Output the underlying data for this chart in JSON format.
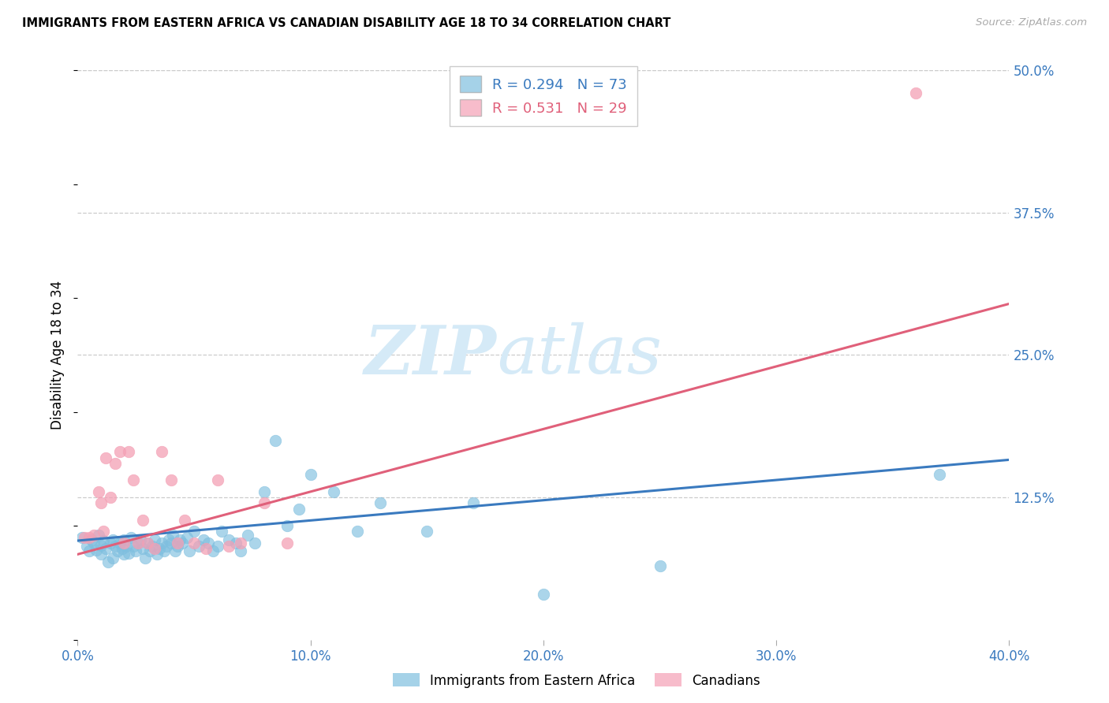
{
  "title": "IMMIGRANTS FROM EASTERN AFRICA VS CANADIAN DISABILITY AGE 18 TO 34 CORRELATION CHART",
  "source": "Source: ZipAtlas.com",
  "ylabel": "Disability Age 18 to 34",
  "xlabel_ticks": [
    "0.0%",
    "10.0%",
    "20.0%",
    "30.0%",
    "40.0%"
  ],
  "xlabel_vals": [
    0.0,
    0.1,
    0.2,
    0.3,
    0.4
  ],
  "ylabel_ticks": [
    "12.5%",
    "25.0%",
    "37.5%",
    "50.0%"
  ],
  "ylabel_vals": [
    0.125,
    0.25,
    0.375,
    0.5
  ],
  "xlim": [
    0.0,
    0.4
  ],
  "ylim": [
    0.0,
    0.5
  ],
  "blue_R": 0.294,
  "blue_N": 73,
  "pink_R": 0.531,
  "pink_N": 29,
  "blue_color": "#7fbfdf",
  "pink_color": "#f4a0b5",
  "blue_line_color": "#3a7abf",
  "pink_line_color": "#e0607a",
  "watermark_color": "#d5eaf7",
  "legend_label_blue": "Immigrants from Eastern Africa",
  "legend_label_pink": "Canadians",
  "blue_line_x0": 0.0,
  "blue_line_y0": 0.087,
  "blue_line_x1": 0.4,
  "blue_line_y1": 0.158,
  "pink_line_x0": 0.0,
  "pink_line_y0": 0.075,
  "pink_line_x1": 0.4,
  "pink_line_y1": 0.295,
  "blue_scatter_x": [
    0.002,
    0.004,
    0.005,
    0.006,
    0.007,
    0.008,
    0.009,
    0.01,
    0.01,
    0.011,
    0.012,
    0.013,
    0.014,
    0.015,
    0.015,
    0.016,
    0.017,
    0.018,
    0.019,
    0.02,
    0.02,
    0.021,
    0.022,
    0.023,
    0.024,
    0.025,
    0.026,
    0.027,
    0.028,
    0.029,
    0.03,
    0.031,
    0.032,
    0.033,
    0.034,
    0.035,
    0.036,
    0.037,
    0.038,
    0.039,
    0.04,
    0.041,
    0.042,
    0.043,
    0.044,
    0.045,
    0.047,
    0.048,
    0.05,
    0.052,
    0.054,
    0.056,
    0.058,
    0.06,
    0.062,
    0.065,
    0.068,
    0.07,
    0.073,
    0.076,
    0.08,
    0.085,
    0.09,
    0.095,
    0.1,
    0.11,
    0.12,
    0.13,
    0.15,
    0.17,
    0.2,
    0.25,
    0.37
  ],
  "blue_scatter_y": [
    0.09,
    0.082,
    0.078,
    0.088,
    0.085,
    0.079,
    0.092,
    0.075,
    0.083,
    0.087,
    0.08,
    0.068,
    0.085,
    0.088,
    0.072,
    0.082,
    0.078,
    0.085,
    0.08,
    0.088,
    0.075,
    0.082,
    0.076,
    0.09,
    0.082,
    0.078,
    0.085,
    0.088,
    0.08,
    0.072,
    0.085,
    0.078,
    0.082,
    0.088,
    0.075,
    0.08,
    0.085,
    0.078,
    0.082,
    0.088,
    0.085,
    0.092,
    0.078,
    0.082,
    0.088,
    0.085,
    0.09,
    0.078,
    0.095,
    0.082,
    0.088,
    0.085,
    0.078,
    0.082,
    0.095,
    0.088,
    0.085,
    0.078,
    0.092,
    0.085,
    0.13,
    0.175,
    0.1,
    0.115,
    0.145,
    0.13,
    0.095,
    0.12,
    0.095,
    0.12,
    0.04,
    0.065,
    0.145
  ],
  "pink_scatter_x": [
    0.003,
    0.005,
    0.007,
    0.009,
    0.01,
    0.011,
    0.012,
    0.014,
    0.016,
    0.018,
    0.02,
    0.022,
    0.024,
    0.026,
    0.028,
    0.03,
    0.033,
    0.036,
    0.04,
    0.043,
    0.046,
    0.05,
    0.055,
    0.06,
    0.065,
    0.07,
    0.08,
    0.09,
    0.36
  ],
  "pink_scatter_y": [
    0.09,
    0.09,
    0.092,
    0.13,
    0.12,
    0.095,
    0.16,
    0.125,
    0.155,
    0.165,
    0.085,
    0.165,
    0.14,
    0.085,
    0.105,
    0.085,
    0.08,
    0.165,
    0.14,
    0.085,
    0.105,
    0.085,
    0.08,
    0.14,
    0.082,
    0.085,
    0.12,
    0.085,
    0.48
  ]
}
